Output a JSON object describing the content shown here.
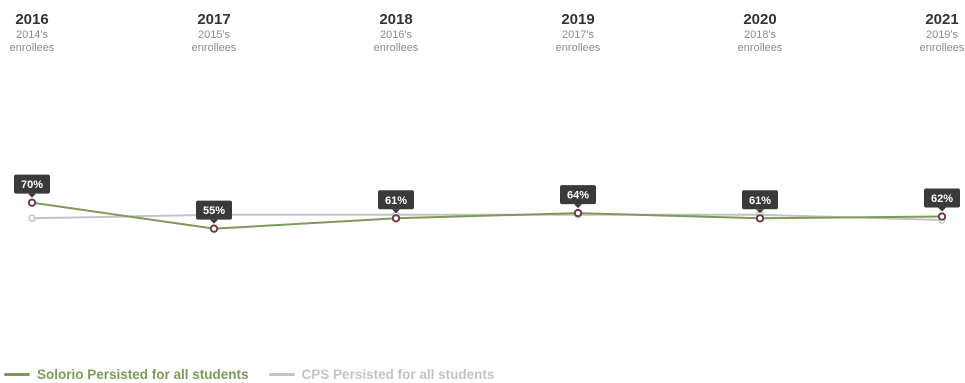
{
  "colors": {
    "solorio": "#7e9a5a",
    "cps": "#c4c4c4",
    "marker": "#6b3b4b",
    "label_bg": "#3a3a3a",
    "label_text": "#ffffff",
    "year_text": "#333333",
    "cohort_text": "#8c8c8c"
  },
  "chart_data": {
    "type": "line",
    "categories": [
      "2016",
      "2017",
      "2018",
      "2019",
      "2020",
      "2021"
    ],
    "category_sublabels": [
      [
        "2014's",
        "enrollees"
      ],
      [
        "2015's",
        "enrollees"
      ],
      [
        "2016's",
        "enrollees"
      ],
      [
        "2017's",
        "enrollees"
      ],
      [
        "2018's",
        "enrollees"
      ],
      [
        "2019's",
        "enrollees"
      ]
    ],
    "series": [
      {
        "name": "Solorio Persisted for all students",
        "values": [
          70,
          55,
          61,
          64,
          61,
          62
        ],
        "labels": [
          "70%",
          "55%",
          "61%",
          "64%",
          "61%",
          "62%"
        ]
      },
      {
        "name": "CPS Persisted for all students",
        "values": [
          61,
          63,
          63,
          63,
          63,
          60
        ]
      }
    ],
    "ylim": [
      0,
      120
    ],
    "grid": false,
    "legend_position": "bottom-left"
  }
}
